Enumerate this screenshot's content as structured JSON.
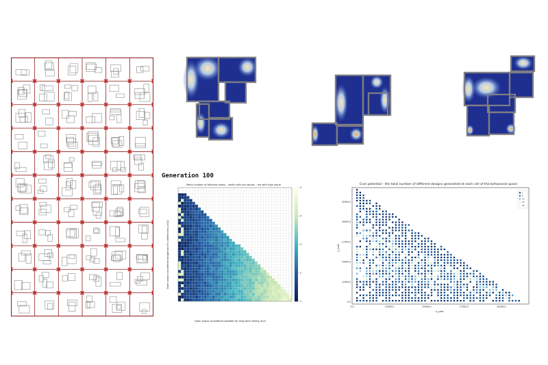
{
  "heatmap": {
    "title": "Generation 100",
    "chart_title": "Mean number of finished rooms - white cells not values - red with high value",
    "xlabel": "Open space considered suitable for long term sitting (m2)",
    "ylabel": "Open space considered dangerous for pedestrians (m2)",
    "colorbar_ticks": [
      "1",
      "2",
      "3",
      "4",
      "5"
    ]
  },
  "scatter": {
    "title": "Cnct potential - the total number of different designs generated at each cell of the behavioral space",
    "xlabel": "x_pmt",
    "ylabel": "y_pmt",
    "yticks": [
      "0.0",
      "12500.0",
      "15000.0",
      "17500.0",
      "20000.0",
      "22500.0"
    ],
    "xticks": [
      "0.0",
      "12500.0",
      "15000.0",
      "17500.0",
      "20000.0"
    ],
    "legend": [
      "1",
      "5",
      "10",
      "15",
      "20"
    ]
  },
  "colors": {
    "grid_frame": "#8b1a1a",
    "grid_marker": "#c62828",
    "plan_wall": "#7d7d85",
    "plan_base": "#1e2f8f",
    "heat_hot": "#f5a623",
    "scatter_dark": "#08306b"
  },
  "chart_data": [
    {
      "type": "heatmap",
      "title": "Mean number of finished rooms - white cells not values - red with high value",
      "xlabel": "Open space considered suitable for long term sitting (m2)",
      "ylabel": "Open space considered dangerous for pedestrians (m2)",
      "colorbar_range": [
        1,
        5
      ]
    },
    {
      "type": "scatter",
      "title": "Cnct potential - the total number of different designs generated at each cell of the behavioral space",
      "xlabel": "x_pmt",
      "ylabel": "y_pmt"
    }
  ]
}
